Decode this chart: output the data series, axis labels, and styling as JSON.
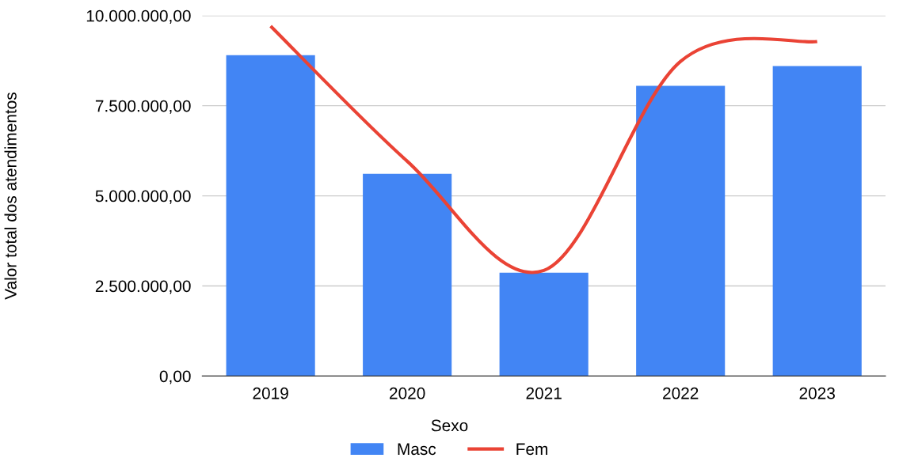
{
  "chart_data": {
    "type": "bar",
    "ylabel": "Valor total dos atendimentos",
    "legend_title": "Sexo",
    "categories": [
      "2019",
      "2020",
      "2021",
      "2022",
      "2023"
    ],
    "series": [
      {
        "name": "Masc",
        "color": "#4285f4",
        "values": [
          8900000,
          5610000,
          2870000,
          8050000,
          8600000
        ]
      },
      {
        "name": "Fem",
        "type": "line",
        "color": "#ea4335",
        "values": [
          9710000,
          5960000,
          2930000,
          8730000,
          9280000
        ]
      }
    ],
    "ylim": [
      0,
      10000000
    ],
    "yticks": [
      {
        "value": 0,
        "label": "0,00"
      },
      {
        "value": 2500000,
        "label": "2.500.000,00"
      },
      {
        "value": 5000000,
        "label": "5.000.000,00"
      },
      {
        "value": 7500000,
        "label": "7.500.000,00"
      },
      {
        "value": 10000000,
        "label": "10.000.000,00"
      }
    ],
    "grid": "y",
    "legend": "bottom",
    "marker": "none",
    "line_style": "solid"
  }
}
